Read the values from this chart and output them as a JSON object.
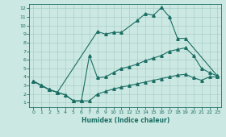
{
  "xlabel": "Humidex (Indice chaleur)",
  "xlim": [
    -0.5,
    23.5
  ],
  "ylim": [
    0.5,
    12.5
  ],
  "xticks": [
    0,
    1,
    2,
    3,
    4,
    5,
    6,
    7,
    8,
    9,
    10,
    11,
    12,
    13,
    14,
    15,
    16,
    17,
    18,
    19,
    20,
    21,
    22,
    23
  ],
  "yticks": [
    1,
    2,
    3,
    4,
    5,
    6,
    7,
    8,
    9,
    10,
    11,
    12
  ],
  "bg_color": "#cce8e2",
  "line_color": "#1a6e64",
  "grid_color": "#aacfc9",
  "lines": [
    {
      "x": [
        0,
        1,
        2,
        3,
        8,
        9,
        10,
        11,
        13,
        14,
        15,
        16,
        17,
        18,
        19,
        23
      ],
      "y": [
        3.5,
        3.0,
        2.5,
        2.2,
        9.3,
        9.0,
        9.2,
        9.2,
        10.6,
        11.4,
        11.2,
        12.1,
        11.0,
        8.5,
        8.5,
        4.1
      ]
    },
    {
      "x": [
        0,
        1,
        2,
        3,
        4,
        5,
        6,
        7,
        8,
        9,
        10,
        11,
        12,
        13,
        14,
        15,
        16,
        17,
        18,
        19,
        20,
        21,
        22,
        23
      ],
      "y": [
        3.5,
        3.0,
        2.5,
        2.2,
        1.9,
        1.2,
        1.2,
        6.5,
        3.9,
        4.0,
        4.5,
        5.0,
        5.2,
        5.5,
        5.9,
        6.2,
        6.5,
        7.0,
        7.2,
        7.4,
        6.5,
        5.0,
        4.5,
        4.1
      ]
    },
    {
      "x": [
        0,
        1,
        2,
        3,
        4,
        5,
        6,
        7,
        8,
        9,
        10,
        11,
        12,
        13,
        14,
        15,
        16,
        17,
        18,
        19,
        20,
        21,
        22,
        23
      ],
      "y": [
        3.5,
        3.0,
        2.5,
        2.2,
        1.9,
        1.2,
        1.2,
        1.2,
        2.0,
        2.3,
        2.6,
        2.8,
        3.0,
        3.2,
        3.4,
        3.6,
        3.8,
        4.0,
        4.2,
        4.3,
        3.9,
        3.6,
        4.0,
        4.0
      ]
    }
  ]
}
